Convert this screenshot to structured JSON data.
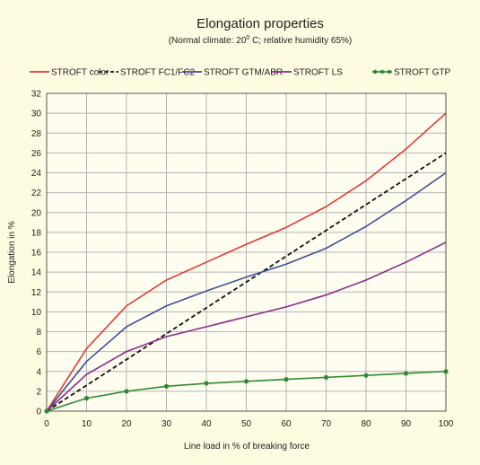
{
  "chart_data": {
    "type": "line",
    "title": "Elongation properties",
    "subtitle": "(Normal climate: 20",
    "subtitle_sup": "0",
    "subtitle_rest": " C;  relative humidity 65%)",
    "xlabel": "Line load in % of breaking force",
    "ylabel": "Elongation in %",
    "x": [
      0,
      10,
      20,
      30,
      40,
      50,
      60,
      70,
      80,
      90,
      100
    ],
    "xlim": [
      0,
      100
    ],
    "ylim": [
      0,
      32
    ],
    "xticks": [
      "0",
      "10",
      "20",
      "30",
      "40",
      "50",
      "60",
      "70",
      "80",
      "90",
      "100"
    ],
    "yticks": [
      "0",
      "2",
      "4",
      "6",
      "8",
      "10",
      "12",
      "14",
      "16",
      "18",
      "20",
      "22",
      "24",
      "26",
      "28",
      "30",
      "32"
    ],
    "grid": true,
    "legend_position": "top",
    "series": [
      {
        "name": "STROFT color",
        "color": "#e03a32",
        "dash": "solid",
        "markers": false,
        "values": [
          0,
          6.3,
          10.6,
          13.2,
          15.0,
          16.8,
          18.5,
          20.6,
          23.2,
          26.4,
          30.0
        ]
      },
      {
        "name": "STROFT FC1/FC2",
        "color": "#111111",
        "dash": "dashed",
        "markers": false,
        "values": [
          0,
          2.6,
          5.2,
          7.8,
          10.4,
          13.0,
          15.6,
          18.2,
          20.8,
          23.4,
          26.0
        ]
      },
      {
        "name": "STROFT GTM/ABR",
        "color": "#3b4f9a",
        "dash": "solid",
        "markers": false,
        "values": [
          0,
          5.0,
          8.5,
          10.6,
          12.1,
          13.5,
          14.8,
          16.4,
          18.6,
          21.2,
          24.0
        ]
      },
      {
        "name": "STROFT LS",
        "color": "#8a2a8a",
        "dash": "solid",
        "markers": false,
        "values": [
          0,
          3.7,
          6.0,
          7.5,
          8.5,
          9.5,
          10.5,
          11.7,
          13.2,
          15.0,
          17.0
        ]
      },
      {
        "name": "STROFT GTP",
        "color": "#2e8b2e",
        "dash": "solid",
        "markers": true,
        "values": [
          0,
          1.3,
          2.0,
          2.5,
          2.8,
          3.0,
          3.2,
          3.4,
          3.6,
          3.8,
          4.0
        ]
      }
    ]
  }
}
